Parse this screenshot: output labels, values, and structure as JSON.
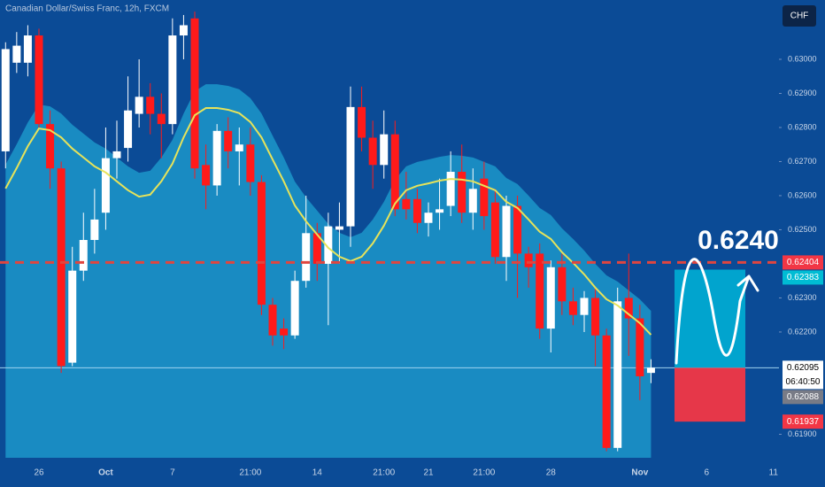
{
  "chart_data": {
    "type": "candlestick",
    "title": "Canadian Dollar/Swiss Franc, 12h, FXCM",
    "currency": "CHF",
    "annotation": "0.6240",
    "categories": [
      null,
      null,
      null,
      "26",
      null,
      null,
      null,
      null,
      null,
      "Oct",
      null,
      null,
      null,
      null,
      null,
      "7",
      null,
      null,
      null,
      null,
      null,
      null,
      "21:00",
      null,
      null,
      null,
      null,
      null,
      "14",
      null,
      null,
      null,
      null,
      null,
      "21:00",
      null,
      null,
      null,
      "21",
      null,
      null,
      null,
      null,
      "21:00",
      null,
      null,
      null,
      null,
      null,
      "28",
      null,
      null,
      null,
      null,
      null,
      null,
      null,
      "Nov",
      null,
      null,
      null,
      null,
      null,
      "6",
      null,
      null,
      null,
      null,
      null,
      "11"
    ],
    "open": [
      0.6273,
      0.6299,
      0.6299,
      0.6307,
      0.6281,
      0.6268,
      0.6211,
      0.6238,
      0.6247,
      0.6255,
      0.6271,
      0.6274,
      0.6284,
      0.6289,
      0.6284,
      0.6281,
      0.6307,
      0.6312,
      0.6269,
      0.6263,
      0.6279,
      0.6273,
      0.6275,
      0.6264,
      0.6228,
      0.6221,
      0.6219,
      0.6235,
      0.6249,
      0.624,
      0.625,
      0.6251,
      0.6286,
      0.6277,
      0.6269,
      0.6278,
      0.6259,
      0.6259,
      0.6252,
      0.6255,
      0.6257,
      0.6267,
      0.6255,
      0.6265,
      0.6258,
      0.6242,
      0.6257,
      0.6243,
      0.6243,
      0.6221,
      0.6239,
      0.6229,
      0.6225,
      0.623,
      0.6219,
      0.6186,
      0.623,
      0.6224,
      0.6208,
      null,
      null,
      null,
      null,
      null,
      null,
      null,
      null,
      null,
      null,
      null
    ],
    "high": [
      0.6305,
      0.6308,
      0.631,
      0.6309,
      0.6285,
      0.627,
      0.6245,
      0.6255,
      0.6262,
      0.628,
      0.6282,
      0.6295,
      0.63,
      0.6293,
      0.629,
      0.6312,
      0.6313,
      0.6314,
      0.6275,
      0.6281,
      0.6283,
      0.628,
      0.628,
      0.6266,
      0.623,
      0.6224,
      0.6238,
      0.626,
      0.6252,
      0.6255,
      0.6258,
      0.6292,
      0.6292,
      0.6282,
      0.6285,
      0.6282,
      0.6267,
      0.6262,
      0.6258,
      0.6265,
      0.6273,
      0.6275,
      0.6268,
      0.627,
      0.6262,
      0.626,
      0.626,
      0.6245,
      0.6246,
      0.6241,
      0.6243,
      0.6233,
      0.6232,
      0.6233,
      0.6221,
      0.6233,
      0.6243,
      0.6228,
      0.6212,
      null,
      null,
      null,
      null,
      null,
      null,
      null,
      null,
      null,
      null,
      null
    ],
    "low": [
      0.6268,
      0.6296,
      0.6295,
      0.628,
      0.6262,
      0.6208,
      0.621,
      0.6235,
      0.6243,
      0.625,
      0.6265,
      0.627,
      0.628,
      0.6278,
      0.6271,
      0.6278,
      0.63,
      0.6265,
      0.6256,
      0.626,
      0.6268,
      0.6263,
      0.626,
      0.6225,
      0.6216,
      0.6215,
      0.6218,
      0.6233,
      0.6235,
      0.6222,
      0.624,
      0.6245,
      0.6273,
      0.6262,
      0.6265,
      0.6254,
      0.6253,
      0.6249,
      0.6248,
      0.625,
      0.6254,
      0.6252,
      0.625,
      0.625,
      0.624,
      0.6235,
      0.623,
      0.6233,
      0.6218,
      0.6214,
      0.6225,
      0.6222,
      0.622,
      0.621,
      0.6185,
      0.6185,
      0.6213,
      0.62,
      0.6205,
      null,
      null,
      null,
      null,
      null,
      null,
      null,
      null,
      null,
      null,
      null
    ],
    "close": [
      0.6303,
      0.6304,
      0.6307,
      0.6281,
      0.6268,
      0.621,
      0.6238,
      0.6247,
      0.6253,
      0.6271,
      0.6273,
      0.6285,
      0.6289,
      0.6284,
      0.6281,
      0.6307,
      0.631,
      0.6268,
      0.6263,
      0.6279,
      0.6273,
      0.6275,
      0.6264,
      0.6228,
      0.6219,
      0.6219,
      0.6235,
      0.6249,
      0.624,
      0.6251,
      0.6251,
      0.6286,
      0.6277,
      0.6269,
      0.6278,
      0.6256,
      0.6256,
      0.6252,
      0.6255,
      0.6256,
      0.6267,
      0.6255,
      0.6262,
      0.6254,
      0.6242,
      0.6257,
      0.6243,
      0.6239,
      0.6221,
      0.6239,
      0.6229,
      0.6225,
      0.623,
      0.6219,
      0.6186,
      0.6229,
      0.6224,
      0.6207,
      0.62095,
      null,
      null,
      null,
      null,
      null,
      null,
      null,
      null,
      null,
      null,
      null
    ],
    "up_color": "#ffffff",
    "down_color": "#ff1a1a",
    "ma": {
      "color": "#e6e35a",
      "values": [
        0.62621,
        0.62681,
        0.62745,
        0.62797,
        0.62792,
        0.62771,
        0.62738,
        0.62712,
        0.62686,
        0.62668,
        0.62642,
        0.62616,
        0.62597,
        0.62603,
        0.62642,
        0.62694,
        0.62771,
        0.62836,
        0.62857,
        0.62857,
        0.62852,
        0.62842,
        0.62816,
        0.62771,
        0.62706,
        0.62642,
        0.62571,
        0.62525,
        0.62486,
        0.62447,
        0.62421,
        0.62408,
        0.62421,
        0.6246,
        0.62512,
        0.62577,
        0.62616,
        0.62629,
        0.62636,
        0.62644,
        0.62649,
        0.62647,
        0.62642,
        0.62629,
        0.62616,
        0.62582,
        0.62564,
        0.6253,
        0.62494,
        0.62473,
        0.62434,
        0.62403,
        0.62369,
        0.6233,
        0.62296,
        0.62278,
        0.62252,
        0.62226,
        0.62192,
        null,
        null,
        null,
        null,
        null,
        null,
        null,
        null,
        null,
        null,
        null
      ]
    },
    "area": {
      "color": "#1d9bcd",
      "values": [
        0.62691,
        0.62751,
        0.62815,
        0.62867,
        0.62862,
        0.62841,
        0.62808,
        0.62782,
        0.62756,
        0.62738,
        0.62712,
        0.62686,
        0.62667,
        0.62673,
        0.62712,
        0.62764,
        0.62841,
        0.62906,
        0.62927,
        0.62927,
        0.62922,
        0.62912,
        0.62886,
        0.62841,
        0.62776,
        0.62712,
        0.62641,
        0.62595,
        0.62556,
        0.62517,
        0.62491,
        0.62478,
        0.62491,
        0.6253,
        0.62582,
        0.62647,
        0.62686,
        0.62699,
        0.62706,
        0.62714,
        0.62719,
        0.62717,
        0.62712,
        0.62699,
        0.62686,
        0.62652,
        0.62634,
        0.626,
        0.62564,
        0.62543,
        0.62504,
        0.62473,
        0.62439,
        0.624,
        0.62366,
        0.62348,
        0.62322,
        0.62296,
        0.62262,
        null,
        null,
        null,
        null,
        null,
        null,
        null,
        null,
        null,
        null,
        null
      ]
    },
    "ylim": [
      0.61831,
      0.63174
    ],
    "yticks": [
      {
        "value": 0.63,
        "label": "0.63000"
      },
      {
        "value": 0.629,
        "label": "0.62900"
      },
      {
        "value": 0.628,
        "label": "0.62800"
      },
      {
        "value": 0.627,
        "label": "0.62700"
      },
      {
        "value": 0.626,
        "label": "0.62600"
      },
      {
        "value": 0.625,
        "label": "0.62500"
      },
      {
        "value": 0.623,
        "label": "0.62300"
      },
      {
        "value": 0.622,
        "label": "0.62200"
      },
      {
        "value": 0.619,
        "label": "0.61900"
      }
    ],
    "price_labels": [
      {
        "value": 0.62404,
        "label": "0.62404",
        "color": "#f23645"
      },
      {
        "value": 0.62383,
        "label": "0.62383",
        "color": "#00bcd4"
      },
      {
        "value": 0.62095,
        "label": "0.62095",
        "sublabel": "06:40:50",
        "color": "#ffffff"
      },
      {
        "value": 0.62088,
        "label": "0.62088",
        "color": "#787b86"
      },
      {
        "value": 0.61937,
        "label": "0.61937",
        "color": "#f23645"
      }
    ]
  }
}
